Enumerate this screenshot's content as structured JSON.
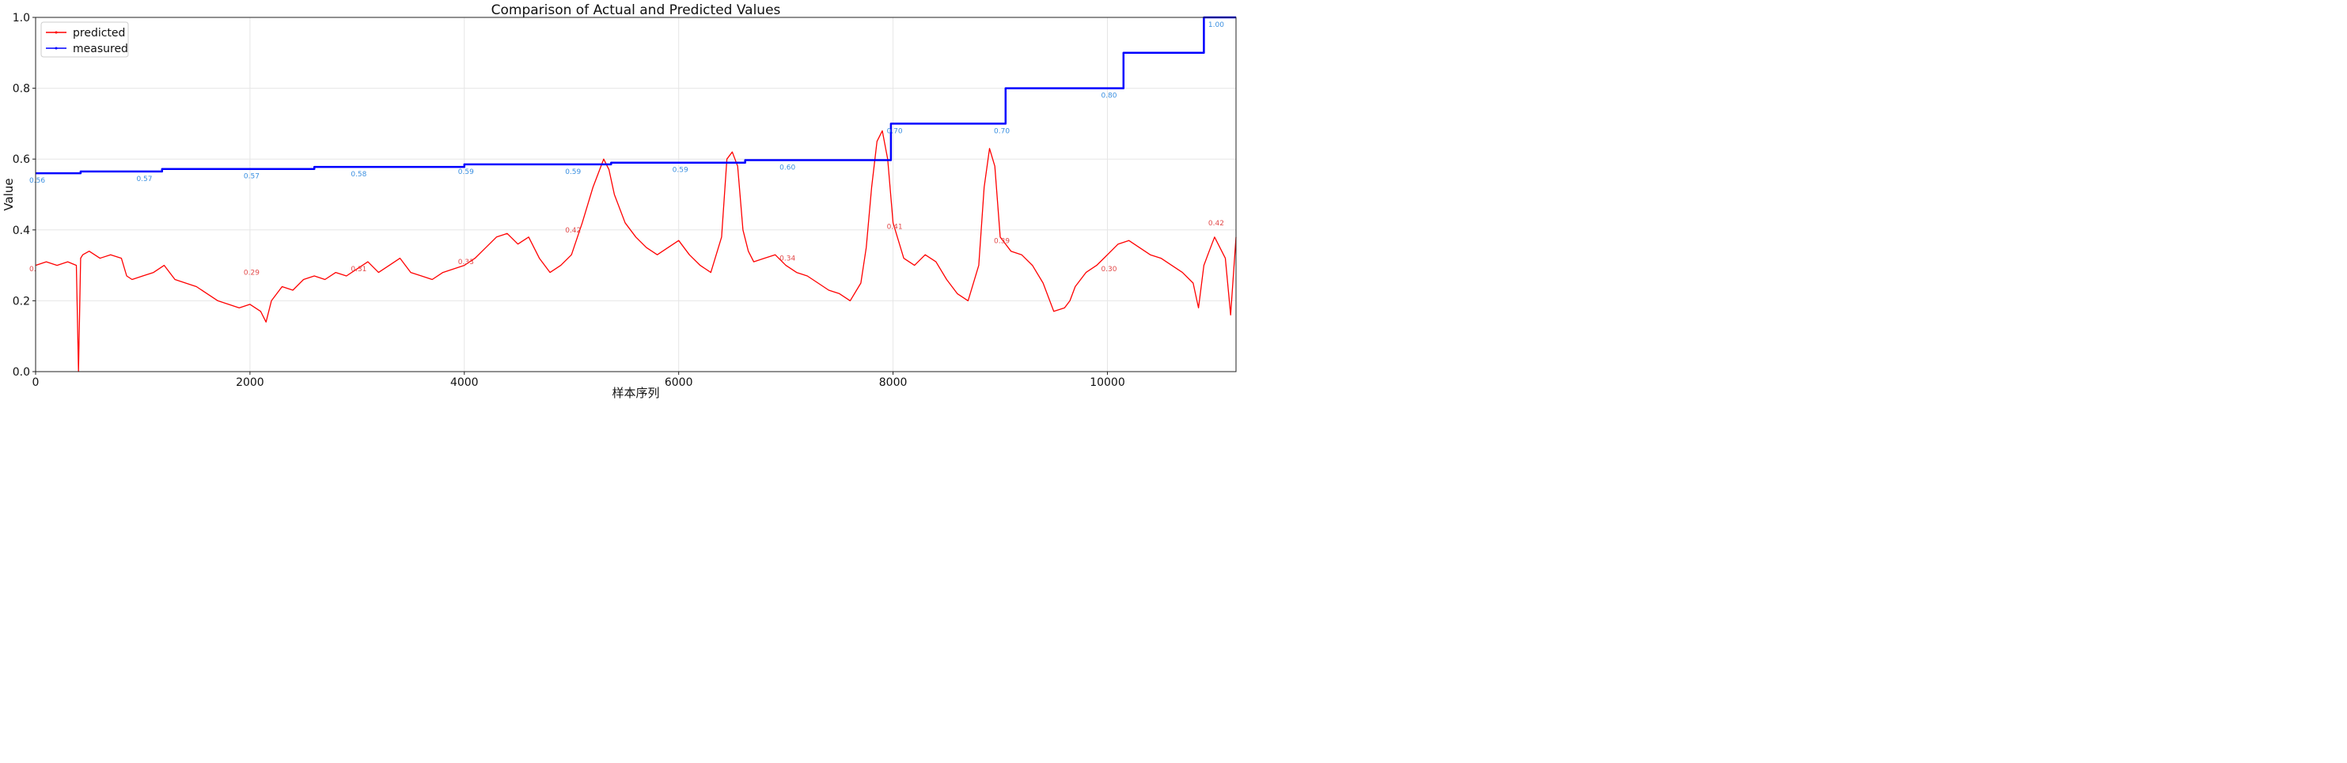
{
  "chart_data": {
    "type": "line",
    "title": "Comparison of Actual and Predicted Values",
    "xlabel": "样本序列",
    "ylabel": "Value",
    "xlim": [
      0,
      11200
    ],
    "ylim": [
      0.0,
      1.0
    ],
    "x_ticks": [
      0,
      2000,
      4000,
      6000,
      8000,
      10000
    ],
    "x_tick_labels": [
      "0",
      "2000",
      "4000",
      "6000",
      "8000",
      "10000"
    ],
    "y_ticks": [
      0.0,
      0.2,
      0.4,
      0.6,
      0.8,
      1.0
    ],
    "y_tick_labels": [
      "0.0",
      "0.2",
      "0.4",
      "0.6",
      "0.8",
      "1.0"
    ],
    "grid": true,
    "legend": "upper-left",
    "series": [
      {
        "name": "predicted",
        "color": "#ff0000",
        "x": [
          0,
          100,
          200,
          300,
          380,
          400,
          420,
          440,
          500,
          600,
          700,
          800,
          850,
          900,
          1000,
          1100,
          1200,
          1300,
          1400,
          1500,
          1600,
          1700,
          1800,
          1900,
          2000,
          2100,
          2150,
          2200,
          2300,
          2400,
          2500,
          2600,
          2700,
          2800,
          2900,
          3000,
          3100,
          3200,
          3300,
          3400,
          3500,
          3600,
          3700,
          3800,
          3900,
          4000,
          4100,
          4200,
          4300,
          4400,
          4500,
          4600,
          4700,
          4800,
          4900,
          5000,
          5100,
          5200,
          5250,
          5300,
          5350,
          5400,
          5500,
          5600,
          5700,
          5800,
          5900,
          6000,
          6100,
          6200,
          6300,
          6400,
          6450,
          6500,
          6550,
          6600,
          6650,
          6700,
          6800,
          6900,
          7000,
          7100,
          7200,
          7300,
          7400,
          7500,
          7600,
          7700,
          7750,
          7800,
          7850,
          7900,
          7950,
          8000,
          8100,
          8200,
          8300,
          8400,
          8500,
          8600,
          8700,
          8800,
          8850,
          8900,
          8950,
          9000,
          9100,
          9200,
          9300,
          9400,
          9500,
          9600,
          9650,
          9700,
          9800,
          9900,
          10000,
          10100,
          10200,
          10300,
          10400,
          10500,
          10600,
          10700,
          10800,
          10850,
          10900,
          10950,
          11000,
          11100,
          11150,
          11200
        ],
        "y": [
          0.3,
          0.31,
          0.3,
          0.31,
          0.3,
          0.0,
          0.32,
          0.33,
          0.34,
          0.32,
          0.33,
          0.32,
          0.27,
          0.26,
          0.27,
          0.28,
          0.3,
          0.26,
          0.25,
          0.24,
          0.22,
          0.2,
          0.19,
          0.18,
          0.19,
          0.17,
          0.14,
          0.2,
          0.24,
          0.23,
          0.26,
          0.27,
          0.26,
          0.28,
          0.27,
          0.29,
          0.31,
          0.28,
          0.3,
          0.32,
          0.28,
          0.27,
          0.26,
          0.28,
          0.29,
          0.3,
          0.32,
          0.35,
          0.38,
          0.39,
          0.36,
          0.38,
          0.32,
          0.28,
          0.3,
          0.33,
          0.42,
          0.52,
          0.56,
          0.6,
          0.57,
          0.5,
          0.42,
          0.38,
          0.35,
          0.33,
          0.35,
          0.37,
          0.33,
          0.3,
          0.28,
          0.38,
          0.6,
          0.62,
          0.58,
          0.4,
          0.34,
          0.31,
          0.32,
          0.33,
          0.3,
          0.28,
          0.27,
          0.25,
          0.23,
          0.22,
          0.2,
          0.25,
          0.35,
          0.52,
          0.65,
          0.68,
          0.6,
          0.42,
          0.32,
          0.3,
          0.33,
          0.31,
          0.26,
          0.22,
          0.2,
          0.3,
          0.52,
          0.63,
          0.58,
          0.38,
          0.34,
          0.33,
          0.3,
          0.25,
          0.17,
          0.18,
          0.2,
          0.24,
          0.28,
          0.3,
          0.33,
          0.36,
          0.37,
          0.35,
          0.33,
          0.32,
          0.3,
          0.28,
          0.25,
          0.18,
          0.3,
          0.34,
          0.38,
          0.32,
          0.16,
          0.38
        ]
      },
      {
        "name": "measured",
        "color": "#0000ff",
        "x": [
          0,
          420,
          420,
          1180,
          1180,
          2600,
          2600,
          4000,
          4000,
          5370,
          5370,
          6620,
          6620,
          7980,
          7980,
          9050,
          9050,
          10150,
          10150,
          10900,
          10900,
          11200
        ],
        "y": [
          0.56,
          0.56,
          0.565,
          0.565,
          0.572,
          0.572,
          0.578,
          0.578,
          0.585,
          0.585,
          0.59,
          0.59,
          0.597,
          0.597,
          0.7,
          0.7,
          0.8,
          0.8,
          0.9,
          0.9,
          1.0,
          1.0
        ]
      }
    ],
    "data_labels": {
      "measured": [
        {
          "x": 0,
          "y": 0.56,
          "text": "0.56"
        },
        {
          "x": 1000,
          "y": 0.565,
          "text": "0.57"
        },
        {
          "x": 2000,
          "y": 0.572,
          "text": "0.57"
        },
        {
          "x": 3000,
          "y": 0.578,
          "text": "0.58"
        },
        {
          "x": 4000,
          "y": 0.585,
          "text": "0.59"
        },
        {
          "x": 5000,
          "y": 0.585,
          "text": "0.59"
        },
        {
          "x": 6000,
          "y": 0.59,
          "text": "0.59"
        },
        {
          "x": 7000,
          "y": 0.597,
          "text": "0.60"
        },
        {
          "x": 8000,
          "y": 0.7,
          "text": "0.70"
        },
        {
          "x": 9000,
          "y": 0.7,
          "text": "0.70"
        },
        {
          "x": 10000,
          "y": 0.8,
          "text": "0.80"
        },
        {
          "x": 11000,
          "y": 1.0,
          "text": "1.00"
        }
      ],
      "predicted": [
        {
          "x": 0,
          "y": 0.31,
          "text": "0."
        },
        {
          "x": 2000,
          "y": 0.3,
          "text": "0.29"
        },
        {
          "x": 3000,
          "y": 0.31,
          "text": "0.31"
        },
        {
          "x": 4000,
          "y": 0.33,
          "text": "0.33"
        },
        {
          "x": 5000,
          "y": 0.42,
          "text": "0.42"
        },
        {
          "x": 7000,
          "y": 0.34,
          "text": "0.34"
        },
        {
          "x": 8000,
          "y": 0.43,
          "text": "0.41"
        },
        {
          "x": 9000,
          "y": 0.39,
          "text": "0.39"
        },
        {
          "x": 10000,
          "y": 0.31,
          "text": "0.30"
        },
        {
          "x": 11000,
          "y": 0.44,
          "text": "0.42"
        }
      ]
    }
  }
}
